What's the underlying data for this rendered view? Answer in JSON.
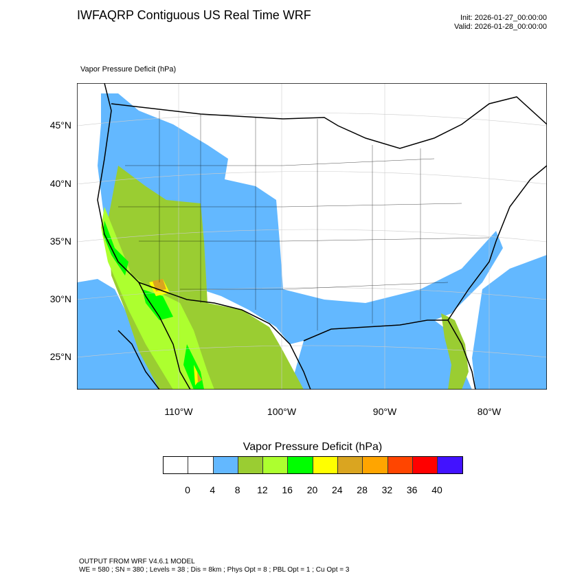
{
  "header": {
    "title": "IWFAQRP Contiguous US Real Time WRF",
    "init": "Init: 2026-01-27_00:00:00",
    "valid": "Valid: 2026-01-28_00:00:00",
    "field_label": "Vapor Pressure Deficit   (hPa)"
  },
  "map": {
    "lat_labels": [
      "45°N",
      "40°N",
      "35°N",
      "30°N",
      "25°N"
    ],
    "lon_labels": [
      "110°W",
      "100°W",
      "90°W",
      "80°W"
    ],
    "region": "Contiguous US"
  },
  "legend": {
    "title": "Vapor Pressure Deficit  (hPa)",
    "levels": [
      "0",
      "4",
      "8",
      "12",
      "16",
      "20",
      "24",
      "28",
      "32",
      "36",
      "40"
    ],
    "colors": [
      "#ffffff",
      "#ffffff",
      "#63b8ff",
      "#9acd32",
      "#adff2f",
      "#00ff00",
      "#ffff00",
      "#daa520",
      "#ffa500",
      "#ff4500",
      "#ff0000",
      "#4212ff"
    ]
  },
  "footer": {
    "line1": "OUTPUT FROM WRF V4.6.1 MODEL",
    "line2": "WE = 580 ; SN = 380 ; Levels = 38 ; Dis = 8km ; Phys Opt = 8 ; PBL Opt = 1 ; Cu Opt = 3"
  }
}
